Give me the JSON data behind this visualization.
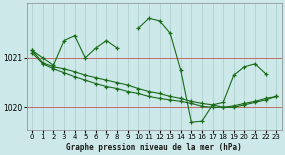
{
  "title": "Graphe pression niveau de la mer (hPa)",
  "background_color": "#cce8e8",
  "grid_color": "#aacccc",
  "line_color": "#1a6b1a",
  "x_ticks": [
    0,
    1,
    2,
    3,
    4,
    5,
    6,
    7,
    8,
    9,
    10,
    11,
    12,
    13,
    14,
    15,
    16,
    17,
    18,
    19,
    20,
    21,
    22,
    23
  ],
  "ylim": [
    1019.55,
    1022.1
  ],
  "yticks": [
    1020.0,
    1021.0
  ],
  "series1": [
    1021.15,
    1021.0,
    1020.85,
    1021.35,
    1021.45,
    1021.0,
    1021.2,
    1021.35,
    1021.2,
    null,
    null,
    null,
    null,
    null,
    null,
    null,
    null,
    null,
    null,
    null,
    null,
    null,
    null,
    null
  ],
  "series2": [
    null,
    null,
    null,
    null,
    null,
    null,
    null,
    null,
    null,
    null,
    1021.6,
    1021.8,
    1021.75,
    1021.5,
    1020.75,
    1019.7,
    1019.72,
    1020.05,
    1020.1,
    1020.65,
    1020.82,
    1020.88,
    1020.68,
    null
  ],
  "series3": [
    1021.15,
    1020.9,
    1020.82,
    1020.78,
    1020.72,
    1020.65,
    1020.6,
    1020.55,
    1020.5,
    1020.45,
    1020.38,
    1020.32,
    1020.28,
    1020.22,
    1020.18,
    1020.12,
    1020.08,
    1020.05,
    1020.0,
    1020.0,
    1020.05,
    1020.1,
    1020.15,
    1020.22
  ],
  "series4": [
    1021.1,
    1020.88,
    1020.78,
    1020.7,
    1020.62,
    1020.55,
    1020.48,
    1020.42,
    1020.38,
    1020.32,
    1020.28,
    1020.22,
    1020.18,
    1020.15,
    1020.12,
    1020.08,
    1020.02,
    1020.0,
    1020.0,
    1020.03,
    1020.08,
    1020.12,
    1020.18,
    1020.22
  ]
}
